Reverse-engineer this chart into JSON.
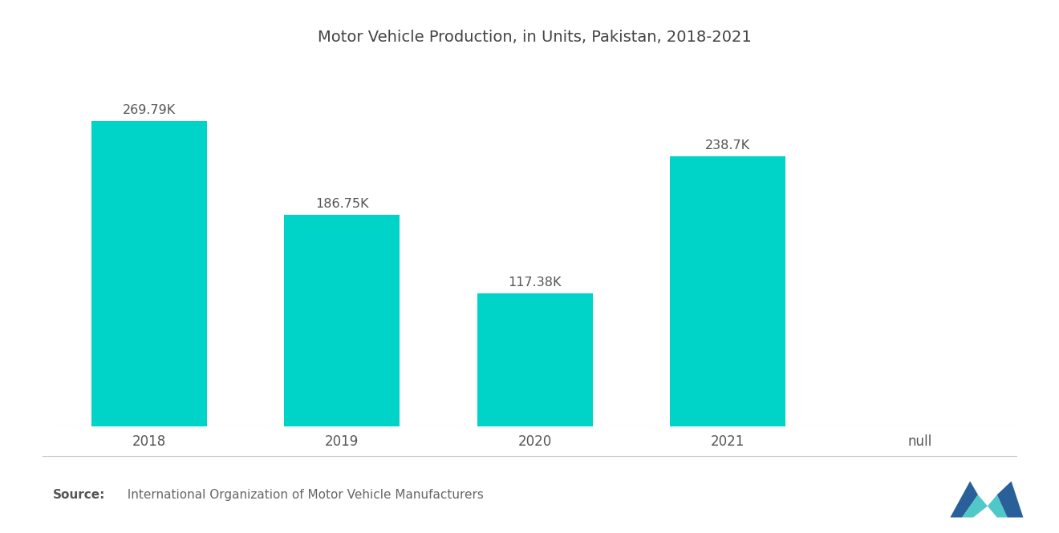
{
  "title": "Motor Vehicle Production, in Units, Pakistan, 2018-2021",
  "categories": [
    "2018",
    "2019",
    "2020",
    "2021",
    "null"
  ],
  "values": [
    269790,
    186750,
    117380,
    238700
  ],
  "labels": [
    "269.79K",
    "186.75K",
    "117.38K",
    "238.7K"
  ],
  "bar_color": "#00D4C8",
  "background_color": "#ffffff",
  "title_fontsize": 14,
  "label_fontsize": 11.5,
  "tick_fontsize": 12,
  "ylim": [
    0,
    320000
  ],
  "bar_width": 0.6,
  "bar_positions": [
    0,
    1,
    2,
    3
  ],
  "xlim": [
    -0.5,
    4.5
  ]
}
